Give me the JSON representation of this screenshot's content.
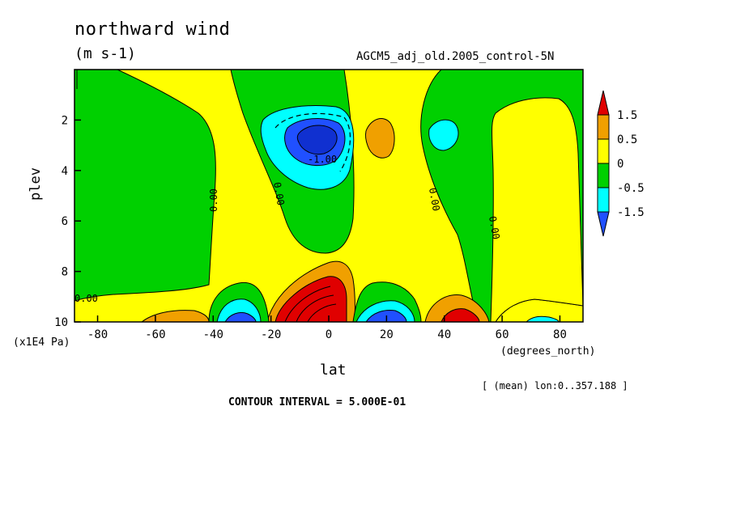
{
  "title": "northward wind",
  "units": "(m s-1)",
  "experiment": "AGCM5_adj_old.2005_control-5N",
  "xlabel": "lat",
  "ylabel": "plev",
  "x_unit": "(degrees_north)",
  "y_unit": "(x1E4 Pa)",
  "averaging_note": "[ (mean) lon:0..357.188 ]",
  "contour_interval_text": "CONTOUR INTERVAL = 5.000E-01",
  "chart_data": {
    "type": "heatmap",
    "x": {
      "label": "lat",
      "range": [
        -88,
        88
      ],
      "ticks": [
        -80,
        -60,
        -40,
        -20,
        0,
        20,
        40,
        60,
        80
      ]
    },
    "y": {
      "label": "plev",
      "range": [
        0,
        10
      ],
      "inverted": true,
      "ticks": [
        2,
        4,
        6,
        8,
        10
      ]
    },
    "contour_interval": 0.5,
    "colorbar": {
      "levels": [
        "1.5",
        "0.5",
        "0",
        "-0.5",
        "-1.5"
      ],
      "colors": {
        "gt_1": "#e00000",
        "0.5_to_1": "#f0a000",
        "0_to_0.5": "#ffff00",
        "-0.5_to_0": "#00d000",
        "-1_to_-0.5": "#00ffff",
        "lt_-1": "#2050ff",
        "lt_-1.5": "#1030d0"
      }
    },
    "contour_labels": [
      "0.00",
      "0.00",
      "-1.00",
      "0.00",
      "0.00",
      "0.00"
    ],
    "features": [
      {
        "type": "min",
        "lat": -2,
        "plev": 2.8,
        "value": -1.5
      },
      {
        "type": "max",
        "lat": 18,
        "plev": 2.6,
        "value": 0.5
      },
      {
        "type": "min",
        "lat": 40,
        "plev": 2.7,
        "value": -0.5
      },
      {
        "type": "max",
        "lat": 0,
        "plev": 9.3,
        "value": 1.5
      },
      {
        "type": "min",
        "lat": 20,
        "plev": 9.8,
        "value": -1.5
      },
      {
        "type": "max",
        "lat": 45,
        "plev": 9.8,
        "value": 1.5
      },
      {
        "type": "min",
        "lat": -30,
        "plev": 9.8,
        "value": -1.5
      },
      {
        "type": "max",
        "lat": -55,
        "plev": 9.9,
        "value": 0.5
      }
    ]
  }
}
